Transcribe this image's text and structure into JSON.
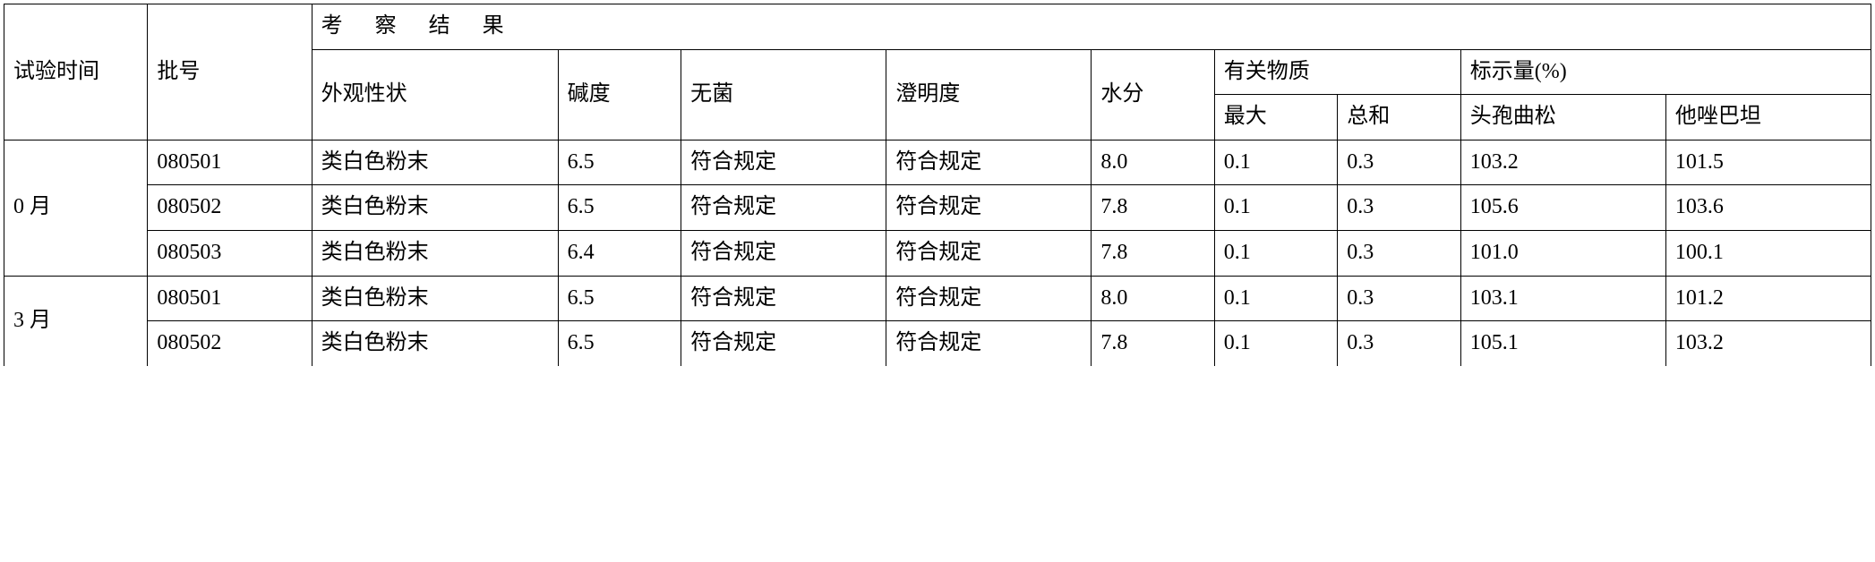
{
  "table": {
    "border_color": "#000000",
    "background_color": "#ffffff",
    "font_size": 24,
    "headers": {
      "time": "试验时间",
      "batch": "批号",
      "result_group": "考察结果",
      "appearance": "外观性状",
      "alkalinity": "碱度",
      "sterility": "无菌",
      "clarity": "澄明度",
      "moisture": "水分",
      "related_sub": "有关物质",
      "labeled_amount": "标示量(%)",
      "max": "最大",
      "sum": "总和",
      "ceftriaxone": "头孢曲松",
      "tazobactam": "他唑巴坦"
    },
    "groups": [
      {
        "time": "0 月",
        "rows": [
          {
            "batch": "080501",
            "appearance": "类白色粉末",
            "alkalinity": "6.5",
            "sterility": "符合规定",
            "clarity": "符合规定",
            "moisture": "8.0",
            "max": "0.1",
            "sum": "0.3",
            "ceftriaxone": "103.2",
            "tazobactam": "101.5"
          },
          {
            "batch": "080502",
            "appearance": "类白色粉末",
            "alkalinity": "6.5",
            "sterility": "符合规定",
            "clarity": "符合规定",
            "moisture": "7.8",
            "max": "0.1",
            "sum": "0.3",
            "ceftriaxone": "105.6",
            "tazobactam": "103.6"
          },
          {
            "batch": "080503",
            "appearance": "类白色粉末",
            "alkalinity": "6.4",
            "sterility": "符合规定",
            "clarity": "符合规定",
            "moisture": "7.8",
            "max": "0.1",
            "sum": "0.3",
            "ceftriaxone": "101.0",
            "tazobactam": "100.1"
          }
        ]
      },
      {
        "time": "3 月",
        "rows": [
          {
            "batch": "080501",
            "appearance": "类白色粉末",
            "alkalinity": "6.5",
            "sterility": "符合规定",
            "clarity": "符合规定",
            "moisture": "8.0",
            "max": "0.1",
            "sum": "0.3",
            "ceftriaxone": "103.1",
            "tazobactam": "101.2"
          },
          {
            "batch": "080502",
            "appearance": "类白色粉末",
            "alkalinity": "6.5",
            "sterility": "符合规定",
            "clarity": "符合规定",
            "moisture": "7.8",
            "max": "0.1",
            "sum": "0.3",
            "ceftriaxone": "105.1",
            "tazobactam": "103.2"
          }
        ]
      }
    ]
  }
}
